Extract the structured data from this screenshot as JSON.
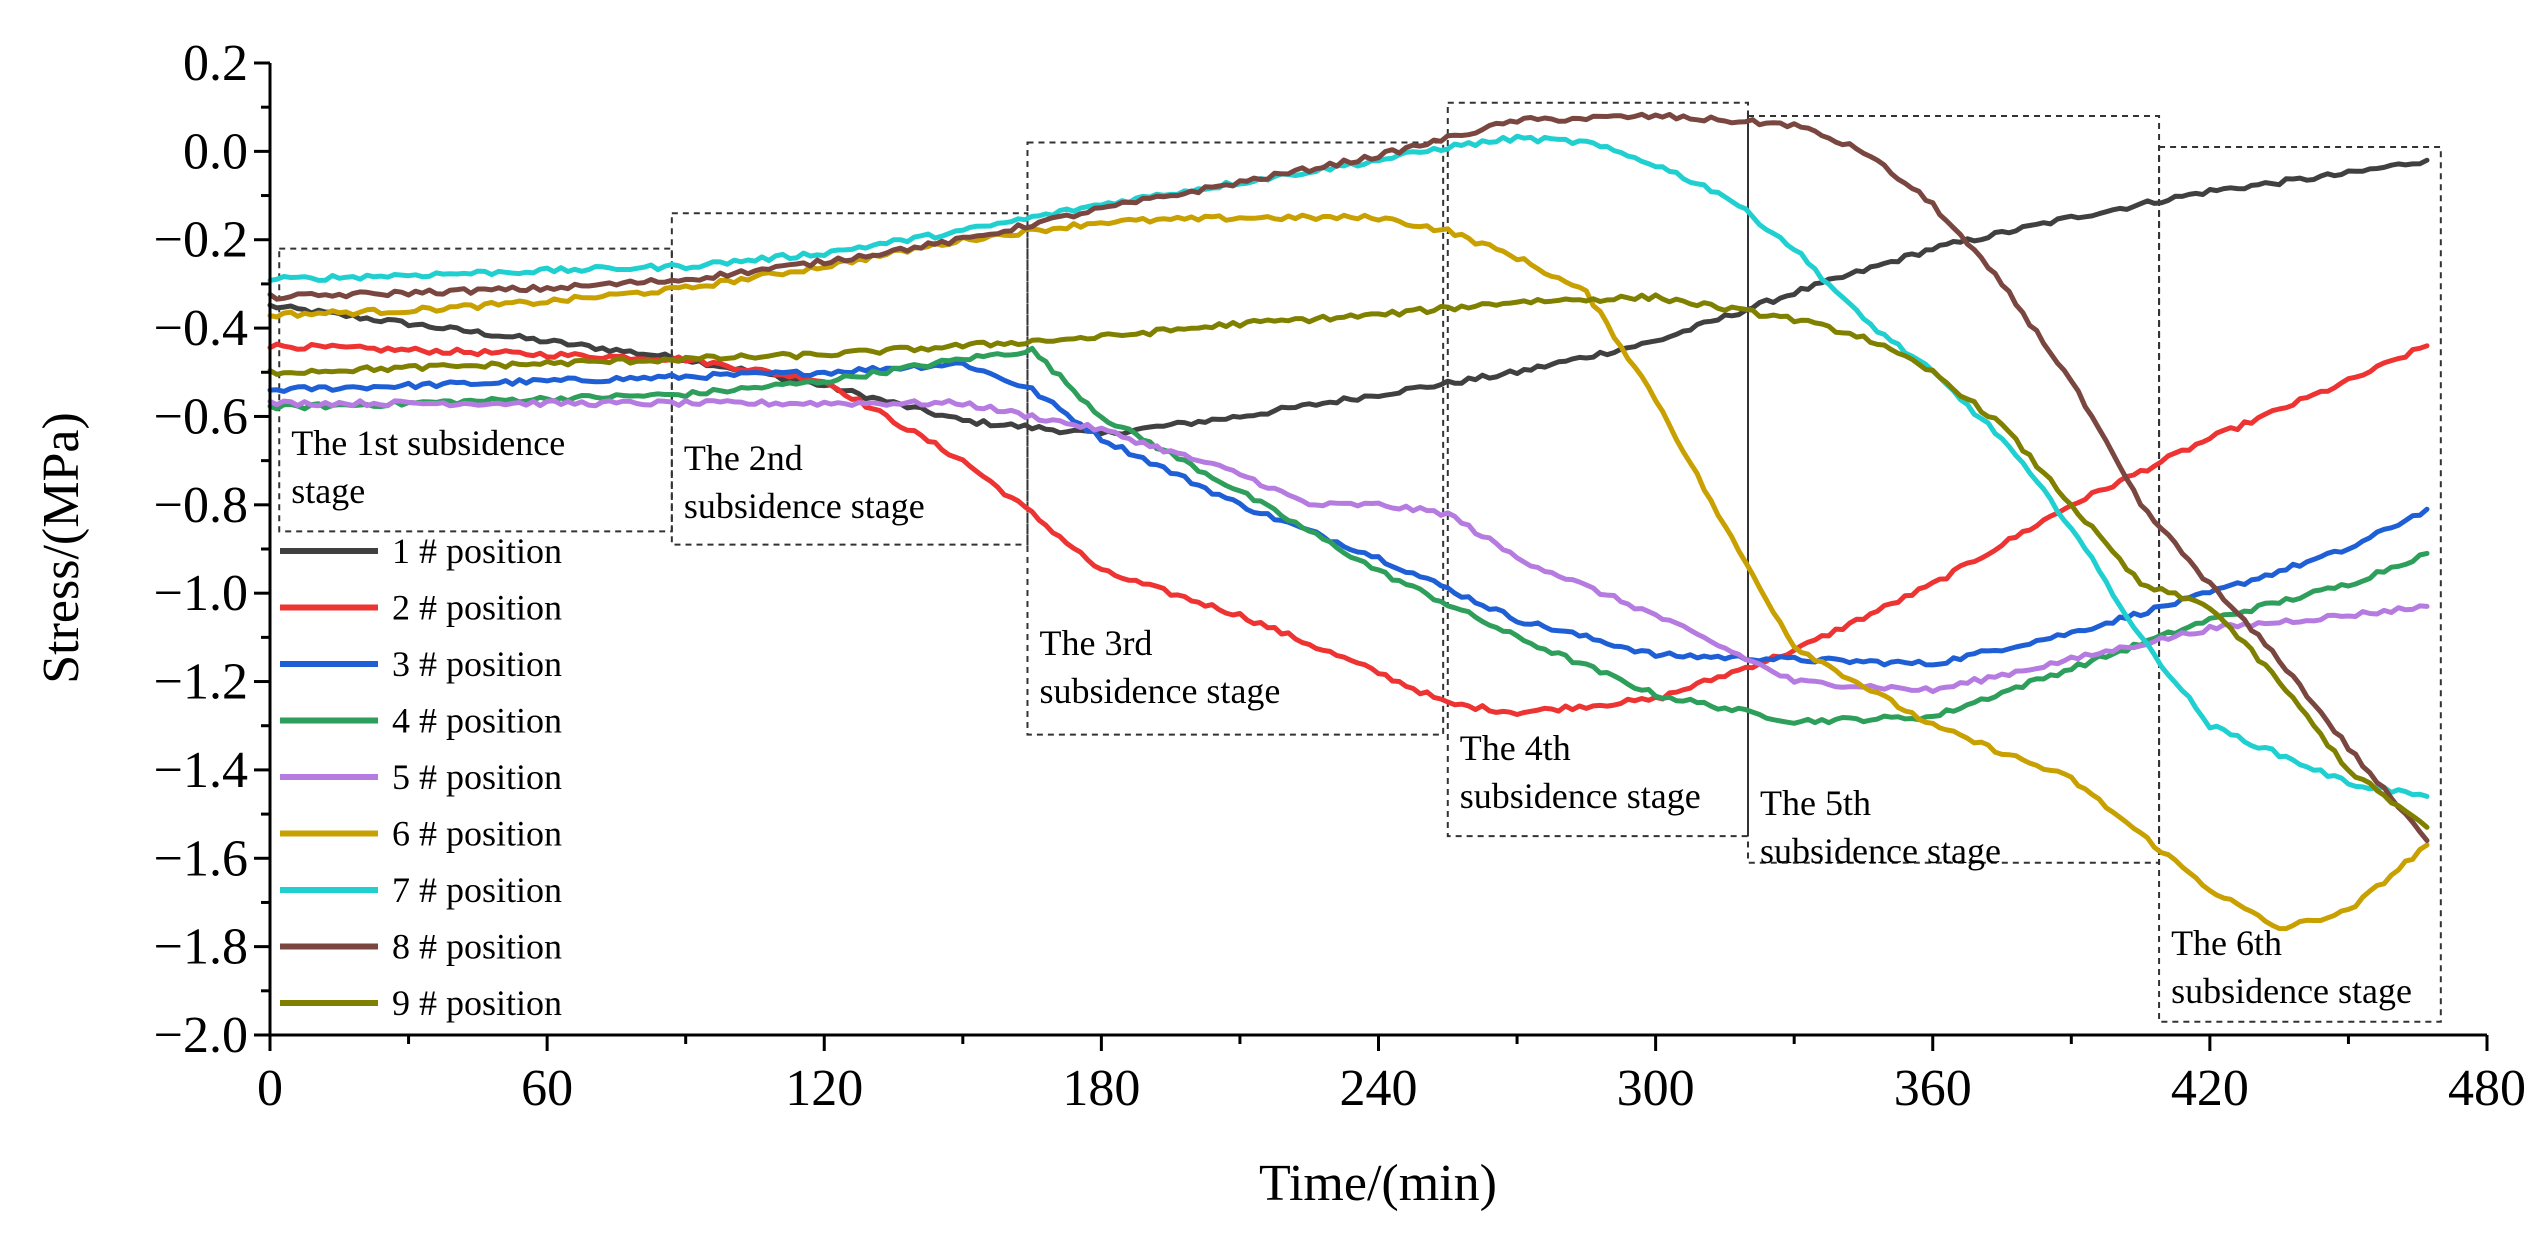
{
  "chart_data": {
    "type": "line",
    "xlabel": "Time/(min)",
    "ylabel": "Stress/(MPa)",
    "xlim": [
      0,
      480
    ],
    "ylim": [
      -2.0,
      0.2
    ],
    "xticks": [
      0,
      60,
      120,
      180,
      240,
      300,
      360,
      420,
      480
    ],
    "yticks": [
      0.2,
      0.0,
      -0.2,
      -0.4,
      -0.6,
      -0.8,
      -1.0,
      -1.2,
      -1.4,
      -1.6,
      -1.8,
      -2.0
    ],
    "xtick_labels": [
      "0",
      "60",
      "120",
      "180",
      "240",
      "300",
      "360",
      "420",
      "480"
    ],
    "ytick_labels": [
      "0.2",
      "0.0",
      "−0.2",
      "−0.4",
      "−0.6",
      "−0.8",
      "−1.0",
      "−1.2",
      "−1.4",
      "−1.6",
      "−1.8",
      "−2.0"
    ],
    "grid": false,
    "legend_position": "left",
    "series": [
      {
        "name": "1 # position",
        "color": "#404040",
        "x": [
          0,
          30,
          60,
          90,
          120,
          150,
          180,
          210,
          240,
          270,
          300,
          330,
          360,
          390,
          420,
          450,
          467
        ],
        "y": [
          -0.35,
          -0.39,
          -0.43,
          -0.47,
          -0.53,
          -0.61,
          -0.64,
          -0.6,
          -0.55,
          -0.5,
          -0.43,
          -0.32,
          -0.22,
          -0.15,
          -0.09,
          -0.05,
          -0.02
        ]
      },
      {
        "name": "2 # position",
        "color": "#ee3333",
        "x": [
          0,
          30,
          60,
          90,
          120,
          150,
          165,
          180,
          210,
          240,
          255,
          270,
          300,
          330,
          360,
          390,
          420,
          450,
          467
        ],
        "y": [
          -0.44,
          -0.45,
          -0.46,
          -0.47,
          -0.52,
          -0.7,
          -0.82,
          -0.95,
          -1.05,
          -1.18,
          -1.25,
          -1.27,
          -1.24,
          -1.13,
          -0.98,
          -0.8,
          -0.65,
          -0.52,
          -0.44
        ]
      },
      {
        "name": "3 # position",
        "color": "#1f5fd6",
        "x": [
          0,
          30,
          60,
          90,
          120,
          150,
          165,
          180,
          210,
          240,
          270,
          300,
          330,
          360,
          390,
          420,
          450,
          467
        ],
        "y": [
          -0.54,
          -0.53,
          -0.52,
          -0.51,
          -0.5,
          -0.48,
          -0.54,
          -0.65,
          -0.8,
          -0.92,
          -1.06,
          -1.14,
          -1.15,
          -1.16,
          -1.09,
          -1.0,
          -0.9,
          -0.81
        ]
      },
      {
        "name": "4 # position",
        "color": "#2e9e5b",
        "x": [
          0,
          30,
          60,
          90,
          120,
          150,
          165,
          180,
          210,
          240,
          270,
          300,
          330,
          360,
          390,
          420,
          450,
          467
        ],
        "y": [
          -0.58,
          -0.57,
          -0.56,
          -0.55,
          -0.52,
          -0.47,
          -0.45,
          -0.6,
          -0.77,
          -0.95,
          -1.1,
          -1.23,
          -1.29,
          -1.28,
          -1.17,
          -1.06,
          -0.98,
          -0.91
        ]
      },
      {
        "name": "5 # position",
        "color": "#b57be0",
        "x": [
          0,
          30,
          60,
          90,
          120,
          150,
          180,
          210,
          225,
          240,
          255,
          270,
          300,
          330,
          360,
          390,
          420,
          450,
          467
        ],
        "y": [
          -0.57,
          -0.57,
          -0.57,
          -0.57,
          -0.57,
          -0.57,
          -0.63,
          -0.73,
          -0.8,
          -0.8,
          -0.82,
          -0.92,
          -1.05,
          -1.2,
          -1.22,
          -1.15,
          -1.08,
          -1.05,
          -1.03
        ]
      },
      {
        "name": "6 # position",
        "color": "#c8a000",
        "x": [
          0,
          30,
          60,
          90,
          120,
          150,
          180,
          210,
          240,
          255,
          270,
          285,
          300,
          315,
          330,
          360,
          390,
          420,
          435,
          450,
          467
        ],
        "y": [
          -0.37,
          -0.36,
          -0.34,
          -0.31,
          -0.26,
          -0.2,
          -0.16,
          -0.15,
          -0.15,
          -0.18,
          -0.24,
          -0.32,
          -0.56,
          -0.85,
          -1.12,
          -1.3,
          -1.42,
          -1.67,
          -1.76,
          -1.72,
          -1.57
        ]
      },
      {
        "name": "7 # position",
        "color": "#20d0d0",
        "x": [
          0,
          30,
          60,
          90,
          120,
          150,
          180,
          210,
          240,
          255,
          270,
          285,
          300,
          315,
          330,
          345,
          360,
          375,
          390,
          405,
          420,
          450,
          467
        ],
        "y": [
          -0.29,
          -0.28,
          -0.27,
          -0.26,
          -0.23,
          -0.18,
          -0.12,
          -0.07,
          -0.02,
          0.01,
          0.03,
          0.02,
          -0.03,
          -0.1,
          -0.22,
          -0.38,
          -0.5,
          -0.65,
          -0.85,
          -1.1,
          -1.3,
          -1.43,
          -1.46
        ]
      },
      {
        "name": "8 # position",
        "color": "#7a4640",
        "x": [
          0,
          30,
          60,
          90,
          120,
          150,
          180,
          210,
          240,
          255,
          270,
          300,
          330,
          345,
          360,
          375,
          390,
          405,
          420,
          435,
          450,
          467
        ],
        "y": [
          -0.33,
          -0.32,
          -0.31,
          -0.29,
          -0.25,
          -0.2,
          -0.13,
          -0.07,
          -0.01,
          0.03,
          0.07,
          0.08,
          0.06,
          0.0,
          -0.12,
          -0.3,
          -0.52,
          -0.8,
          -0.98,
          -1.15,
          -1.35,
          -1.56
        ]
      },
      {
        "name": "9 # position",
        "color": "#808000",
        "x": [
          0,
          30,
          60,
          90,
          120,
          150,
          180,
          210,
          240,
          270,
          300,
          330,
          345,
          360,
          375,
          390,
          405,
          420,
          435,
          450,
          467
        ],
        "y": [
          -0.5,
          -0.49,
          -0.48,
          -0.47,
          -0.46,
          -0.44,
          -0.42,
          -0.39,
          -0.37,
          -0.34,
          -0.33,
          -0.38,
          -0.42,
          -0.5,
          -0.62,
          -0.8,
          -0.98,
          -1.03,
          -1.2,
          -1.4,
          -1.53
        ]
      }
    ],
    "annotations": [
      {
        "lines": [
          "The 1st subsidence",
          "stage"
        ],
        "x_range": [
          2,
          87
        ],
        "y_range": [
          -0.86,
          -0.22
        ]
      },
      {
        "lines": [
          "The 2nd",
          "subsidence stage"
        ],
        "x_range": [
          87,
          164
        ],
        "y_range": [
          -0.89,
          -0.14
        ]
      },
      {
        "lines": [
          "The 3rd",
          "subsidence stage"
        ],
        "x_range": [
          164,
          254
        ],
        "y_range": [
          -1.32,
          0.02
        ]
      },
      {
        "lines": [
          "The 4th",
          "subsidence stage"
        ],
        "x_range": [
          255,
          320
        ],
        "y_range": [
          -1.55,
          0.11
        ]
      },
      {
        "lines": [
          "The 5th",
          "subsidence stage"
        ],
        "x_range": [
          320,
          409
        ],
        "y_range": [
          -1.61,
          0.08
        ]
      },
      {
        "lines": [
          "The 6th",
          "subsidence stage"
        ],
        "x_range": [
          409,
          470
        ],
        "y_range": [
          -1.97,
          0.01
        ]
      }
    ]
  }
}
